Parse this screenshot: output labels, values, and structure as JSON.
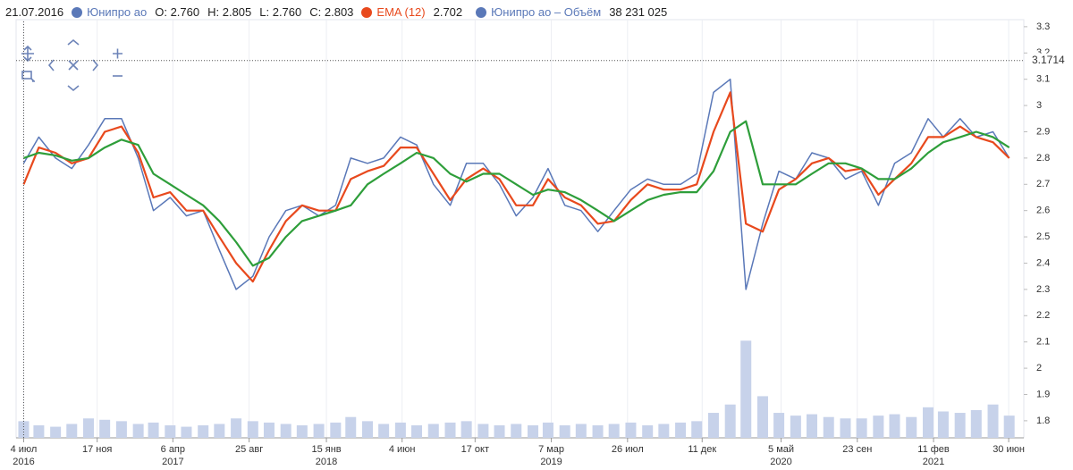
{
  "legend": {
    "date": "21.07.2016",
    "ohlc": [
      "O: 2.760",
      "H: 2.805",
      "L: 2.760",
      "C: 2.803"
    ],
    "ema_value": "2.702",
    "volume_value": "38 231 025"
  },
  "chart_data": {
    "type": "line",
    "x": [
      "2016-07-04",
      "2016-08-01",
      "2016-09-01",
      "2016-10-01",
      "2016-11-01",
      "2016-12-01",
      "2017-01-01",
      "2017-02-01",
      "2017-03-01",
      "2017-04-01",
      "2017-05-01",
      "2017-06-01",
      "2017-07-01",
      "2017-08-01",
      "2017-09-01",
      "2017-10-01",
      "2017-11-01",
      "2017-12-01",
      "2018-01-01",
      "2018-02-01",
      "2018-03-01",
      "2018-04-01",
      "2018-05-01",
      "2018-06-01",
      "2018-07-01",
      "2018-08-01",
      "2018-09-01",
      "2018-10-01",
      "2018-11-01",
      "2018-12-01",
      "2019-01-01",
      "2019-02-01",
      "2019-03-01",
      "2019-04-01",
      "2019-05-01",
      "2019-06-01",
      "2019-07-01",
      "2019-08-01",
      "2019-09-01",
      "2019-10-01",
      "2019-11-01",
      "2019-12-01",
      "2020-01-01",
      "2020-02-01",
      "2020-03-01",
      "2020-04-01",
      "2020-05-01",
      "2020-06-01",
      "2020-07-01",
      "2020-08-01",
      "2020-09-01",
      "2020-10-01",
      "2020-11-01",
      "2020-12-01",
      "2021-01-01",
      "2021-02-01",
      "2021-03-01",
      "2021-04-01",
      "2021-05-01",
      "2021-06-01",
      "2021-07-01"
    ],
    "series": [
      {
        "name": "Юнипро ао",
        "color": "#5a78b8",
        "values": [
          2.78,
          2.88,
          2.8,
          2.76,
          2.85,
          2.95,
          2.95,
          2.8,
          2.6,
          2.65,
          2.58,
          2.6,
          2.45,
          2.3,
          2.35,
          2.5,
          2.6,
          2.62,
          2.58,
          2.62,
          2.8,
          2.78,
          2.8,
          2.88,
          2.85,
          2.7,
          2.62,
          2.78,
          2.78,
          2.7,
          2.58,
          2.65,
          2.76,
          2.62,
          2.6,
          2.52,
          2.6,
          2.68,
          2.72,
          2.7,
          2.7,
          2.74,
          3.05,
          3.1,
          2.3,
          2.55,
          2.75,
          2.72,
          2.82,
          2.8,
          2.72,
          2.75,
          2.62,
          2.78,
          2.82,
          2.95,
          2.88,
          2.95,
          2.88,
          2.9,
          2.8
        ]
      },
      {
        "name": "EMA (12)",
        "color": "#e8491d",
        "values": [
          2.7,
          2.84,
          2.82,
          2.78,
          2.8,
          2.9,
          2.92,
          2.82,
          2.65,
          2.67,
          2.6,
          2.6,
          2.5,
          2.4,
          2.33,
          2.45,
          2.56,
          2.62,
          2.6,
          2.6,
          2.72,
          2.75,
          2.77,
          2.84,
          2.84,
          2.74,
          2.64,
          2.72,
          2.76,
          2.72,
          2.62,
          2.62,
          2.72,
          2.65,
          2.62,
          2.55,
          2.56,
          2.64,
          2.7,
          2.68,
          2.68,
          2.7,
          2.9,
          3.05,
          2.55,
          2.52,
          2.68,
          2.72,
          2.78,
          2.8,
          2.75,
          2.76,
          2.66,
          2.72,
          2.78,
          2.88,
          2.88,
          2.92,
          2.88,
          2.86,
          2.8
        ]
      },
      {
        "color": "#2e9e3a",
        "values": [
          2.8,
          2.82,
          2.81,
          2.79,
          2.8,
          2.84,
          2.87,
          2.85,
          2.74,
          2.7,
          2.66,
          2.62,
          2.56,
          2.48,
          2.39,
          2.42,
          2.5,
          2.56,
          2.58,
          2.6,
          2.62,
          2.7,
          2.74,
          2.78,
          2.82,
          2.8,
          2.74,
          2.71,
          2.74,
          2.74,
          2.7,
          2.66,
          2.68,
          2.67,
          2.64,
          2.6,
          2.56,
          2.6,
          2.64,
          2.66,
          2.67,
          2.67,
          2.75,
          2.9,
          2.94,
          2.7,
          2.7,
          2.7,
          2.74,
          2.78,
          2.78,
          2.76,
          2.72,
          2.72,
          2.76,
          2.82,
          2.86,
          2.88,
          2.9,
          2.88,
          2.84
        ]
      },
      {
        "name": "Юнипро ао – Объём",
        "color": "#c7d2ea",
        "axis": "y2",
        "type": "bar",
        "values": [
          60000000,
          45000000,
          40000000,
          50000000,
          70000000,
          65000000,
          60000000,
          50000000,
          55000000,
          45000000,
          40000000,
          45000000,
          50000000,
          70000000,
          60000000,
          55000000,
          50000000,
          45000000,
          50000000,
          55000000,
          75000000,
          60000000,
          50000000,
          55000000,
          45000000,
          50000000,
          55000000,
          60000000,
          50000000,
          45000000,
          50000000,
          45000000,
          55000000,
          45000000,
          50000000,
          45000000,
          50000000,
          55000000,
          45000000,
          50000000,
          55000000,
          60000000,
          90000000,
          120000000,
          350000000,
          150000000,
          90000000,
          80000000,
          85000000,
          75000000,
          70000000,
          70000000,
          80000000,
          85000000,
          75000000,
          110000000,
          95000000,
          90000000,
          100000000,
          120000000,
          80000000
        ]
      }
    ],
    "xlim": [
      "2016-06-20",
      "2021-07-28"
    ],
    "xticks": [
      {
        "value": "2016-07-04",
        "label": "4 июл"
      },
      {
        "value": "2016-11-17",
        "label": "17 ноя"
      },
      {
        "value": "2017-04-06",
        "label": "6 апр"
      },
      {
        "value": "2017-08-25",
        "label": "25 авг"
      },
      {
        "value": "2018-01-15",
        "label": "15 янв"
      },
      {
        "value": "2018-06-04",
        "label": "4 июн"
      },
      {
        "value": "2018-10-17",
        "label": "17 окт"
      },
      {
        "value": "2019-03-07",
        "label": "7 мар"
      },
      {
        "value": "2019-07-26",
        "label": "26 июл"
      },
      {
        "value": "2019-12-11",
        "label": "11 дек"
      },
      {
        "value": "2020-05-05",
        "label": "5 май"
      },
      {
        "value": "2020-09-23",
        "label": "23 сен"
      },
      {
        "value": "2021-02-11",
        "label": "11 фев"
      },
      {
        "value": "2021-06-30",
        "label": "30 июн"
      }
    ],
    "xtick_years": [
      {
        "value": "2016-07-04",
        "label": "2016"
      },
      {
        "value": "2017-04-06",
        "label": "2017"
      },
      {
        "value": "2018-01-15",
        "label": "2018"
      },
      {
        "value": "2019-03-07",
        "label": "2019"
      },
      {
        "value": "2020-05-05",
        "label": "2020"
      },
      {
        "value": "2021-02-11",
        "label": "2021"
      }
    ],
    "ylim": [
      1.735,
      3.32
    ],
    "yticks": [
      1.8,
      1.9,
      2,
      2.1,
      2.2,
      2.3,
      2.4,
      2.5,
      2.6,
      2.7,
      2.8,
      2.9,
      3,
      3.1,
      3.2,
      3.3
    ],
    "y2lim": [
      0,
      1500000000
    ],
    "crosshair": 3.1714,
    "grid": "x"
  }
}
